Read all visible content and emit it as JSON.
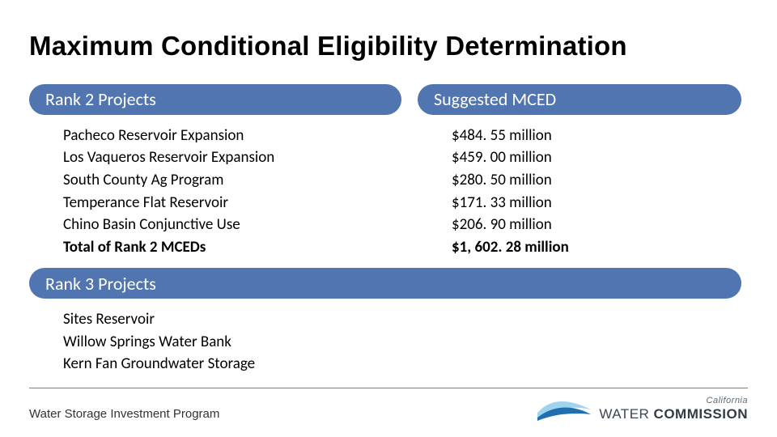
{
  "title": "Maximum Conditional Eligibility Determination",
  "colors": {
    "pill_bg": "#5075b1",
    "pill_text": "#ffffff",
    "rule": "#7d7d7d",
    "wave_light": "#9fd4ef",
    "wave_dark": "#1f6fb1"
  },
  "typography": {
    "title_family": "Arial",
    "title_weight": 700,
    "title_size_pt": 25,
    "body_family": "Calibri",
    "body_size_pt": 14,
    "pill_size_pt": 16
  },
  "headers": {
    "rank2_left": "Rank 2 Projects",
    "rank2_right": "Suggested MCED",
    "rank3": "Rank 3 Projects"
  },
  "rank2": {
    "rows": [
      {
        "name": "Pacheco Reservoir Expansion",
        "value": "$484. 55 million",
        "bold": false
      },
      {
        "name": "Los Vaqueros Reservoir Expansion",
        "value": "$459. 00 million",
        "bold": false
      },
      {
        "name": "South County Ag Program",
        "value": "$280. 50 million",
        "bold": false
      },
      {
        "name": "Temperance Flat Reservoir",
        "value": "$171. 33 million",
        "bold": false
      },
      {
        "name": "Chino Basin Conjunctive Use",
        "value": "$206. 90 million",
        "bold": false
      },
      {
        "name": "Total of Rank 2 MCEDs",
        "value": "$1, 602. 28 million",
        "bold": true
      }
    ]
  },
  "rank3": {
    "rows": [
      {
        "name": "Sites Reservoir"
      },
      {
        "name": "Willow Springs Water Bank"
      },
      {
        "name": "Kern Fan Groundwater Storage"
      }
    ]
  },
  "footer": {
    "program": "Water Storage Investment Program",
    "logo_small": "California",
    "logo_word1": "WATER",
    "logo_word2": "COMMISSION"
  }
}
